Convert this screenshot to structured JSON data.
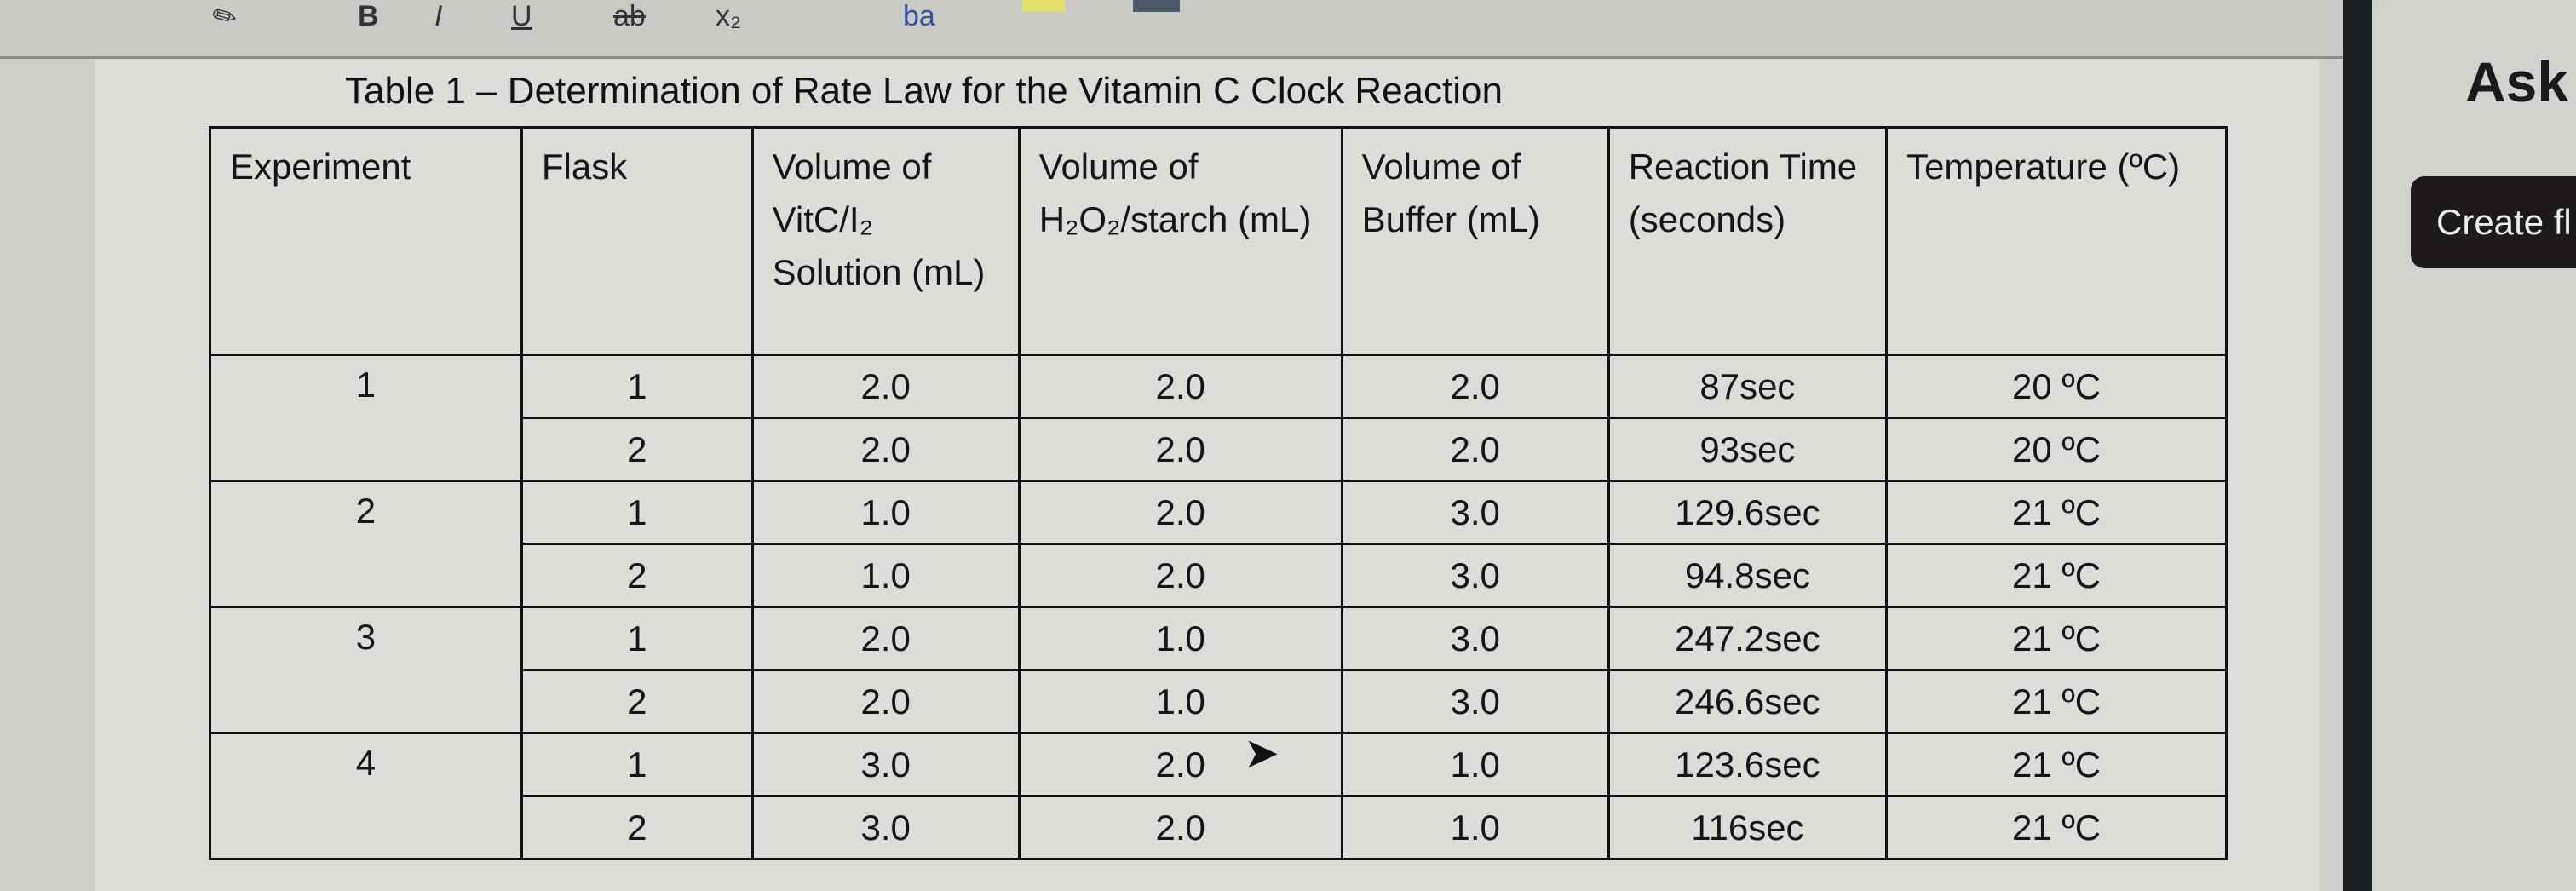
{
  "toolbar": {
    "icons": [
      "highlighter-icon",
      "bold-icon",
      "italic-icon",
      "underline-icon",
      "strikethrough-icon",
      "subscript-icon",
      "font-color-icon",
      "highlight-color-icon",
      "shading-icon"
    ]
  },
  "table": {
    "title": "Table 1 – Determination of Rate Law for the Vitamin C Clock Reaction",
    "headers": [
      "Experiment",
      "Flask",
      "Volume of VitC/I₂ Solution (mL)",
      "Volume of H₂O₂/starch (mL)",
      "Volume of Buffer (mL)",
      "Reaction Time (seconds)",
      "Temperature (ºC)"
    ],
    "experiments": [
      {
        "experiment": "1",
        "rows": [
          [
            "1",
            "2.0",
            "2.0",
            "2.0",
            "87sec",
            "20 ºC"
          ],
          [
            "2",
            "2.0",
            "2.0",
            "2.0",
            "93sec",
            "20 ºC"
          ]
        ]
      },
      {
        "experiment": "2",
        "rows": [
          [
            "1",
            "1.0",
            "2.0",
            "3.0",
            "129.6sec",
            "21 ºC"
          ],
          [
            "2",
            "1.0",
            "2.0",
            "3.0",
            "94.8sec",
            "21 ºC"
          ]
        ]
      },
      {
        "experiment": "3",
        "rows": [
          [
            "1",
            "2.0",
            "1.0",
            "3.0",
            "247.2sec",
            "21 ºC"
          ],
          [
            "2",
            "2.0",
            "1.0",
            "3.0",
            "246.6sec",
            "21 ºC"
          ]
        ]
      },
      {
        "experiment": "4",
        "rows": [
          [
            "1",
            "3.0",
            "2.0",
            "1.0",
            "123.6sec",
            "21 ºC"
          ],
          [
            "2",
            "3.0",
            "2.0",
            "1.0",
            "116sec",
            "21 ºC"
          ]
        ]
      }
    ]
  },
  "side_panel": {
    "heading": "Ask",
    "button": "Create fl"
  }
}
